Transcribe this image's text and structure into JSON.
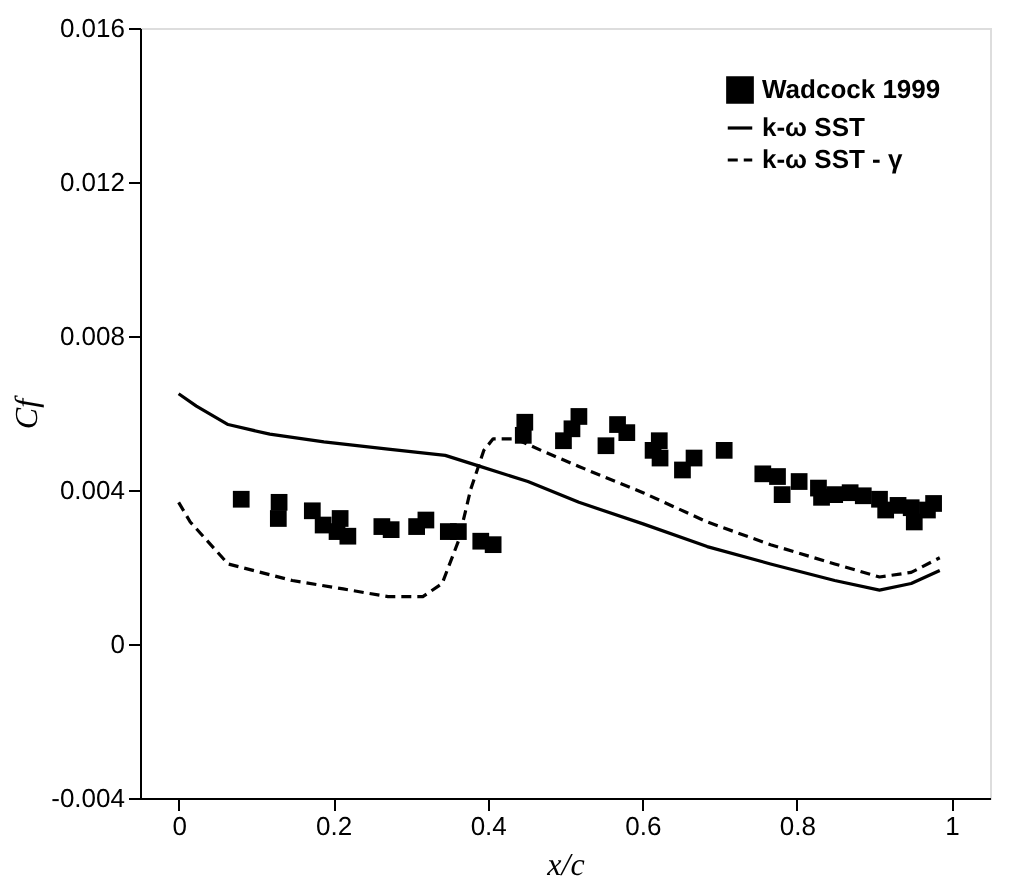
{
  "chart_data": {
    "type": "line",
    "xlabel": "x/c",
    "ylabel": "Cf",
    "xlim": [
      -0.05,
      1.05
    ],
    "ylim": [
      -0.004,
      0.016
    ],
    "xticks": [
      0,
      0.2,
      0.4,
      0.6,
      0.8,
      1
    ],
    "yticks": [
      -0.004,
      0,
      0.004,
      0.008,
      0.012,
      0.016
    ],
    "grid": false,
    "legend": "top right",
    "series": [
      {
        "name": "Wadcock 1999",
        "type": "scatter",
        "marker": "square",
        "color": "#000000",
        "x": [
          0.081,
          0.13,
          0.129,
          0.173,
          0.187,
          0.209,
          0.205,
          0.219,
          0.263,
          0.275,
          0.308,
          0.32,
          0.349,
          0.362,
          0.391,
          0.407,
          0.448,
          0.446,
          0.498,
          0.509,
          0.518,
          0.553,
          0.568,
          0.58,
          0.622,
          0.614,
          0.623,
          0.652,
          0.667,
          0.706,
          0.756,
          0.775,
          0.781,
          0.803,
          0.828,
          0.832,
          0.849,
          0.869,
          0.886,
          0.907,
          0.915,
          0.931,
          0.948,
          0.952,
          0.969,
          0.977
        ],
        "values": [
          0.00376,
          0.00368,
          0.00326,
          0.00346,
          0.00309,
          0.00326,
          0.00292,
          0.0028,
          0.00305,
          0.00297,
          0.00305,
          0.00322,
          0.00292,
          0.00292,
          0.00267,
          0.00258,
          0.00576,
          0.00542,
          0.00528,
          0.00559,
          0.00591,
          0.00515,
          0.0057,
          0.00549,
          0.00528,
          0.00503,
          0.00483,
          0.00452,
          0.00483,
          0.00503,
          0.00442,
          0.00435,
          0.00388,
          0.00422,
          0.00405,
          0.00381,
          0.00388,
          0.00393,
          0.00385,
          0.00376,
          0.00348,
          0.0036,
          0.00354,
          0.00317,
          0.00348,
          0.00365
        ]
      },
      {
        "name": "k-ω SST",
        "marker": "none",
        "line_style": "solid",
        "color": "#000000",
        "x": [
          0,
          0.023,
          0.064,
          0.118,
          0.188,
          0.271,
          0.345,
          0.386,
          0.452,
          0.518,
          0.601,
          0.684,
          0.766,
          0.849,
          0.907,
          0.948,
          0.985
        ],
        "values": [
          0.0065,
          0.00618,
          0.0057,
          0.00545,
          0.00525,
          0.00506,
          0.0049,
          0.00464,
          0.00422,
          0.00368,
          0.00312,
          0.00253,
          0.00208,
          0.00165,
          0.0014,
          0.00157,
          0.00191
        ]
      },
      {
        "name": "k-ω SST - γ",
        "marker": "none",
        "line_style": "dashed",
        "color": "#000000",
        "x": [
          0,
          0.015,
          0.064,
          0.147,
          0.213,
          0.271,
          0.316,
          0.341,
          0.362,
          0.378,
          0.395,
          0.407,
          0.436,
          0.469,
          0.518,
          0.601,
          0.684,
          0.766,
          0.849,
          0.907,
          0.948,
          0.985
        ],
        "values": [
          0.00368,
          0.00317,
          0.00208,
          0.00165,
          0.00143,
          0.00123,
          0.00123,
          0.00157,
          0.00267,
          0.00402,
          0.00503,
          0.00533,
          0.00533,
          0.00503,
          0.00461,
          0.00393,
          0.00317,
          0.00258,
          0.00208,
          0.00174,
          0.00186,
          0.00224
        ]
      }
    ]
  }
}
